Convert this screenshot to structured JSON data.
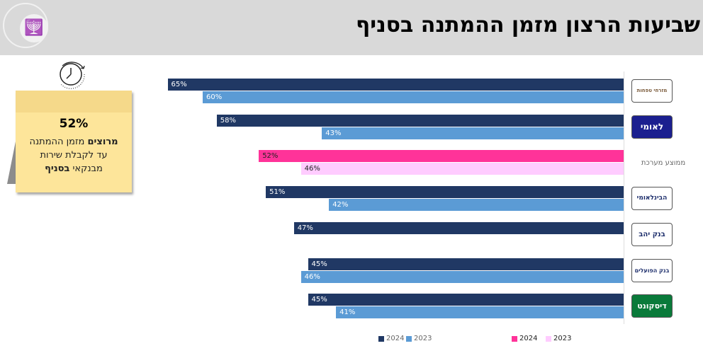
{
  "header": {
    "title": "שביעות הרצון מזמן ההמתנה בסניף"
  },
  "note": {
    "pct": "52%",
    "line1_bold": "מרוצים",
    "line1_rest": " מזמן ההמתנה",
    "line2": "עד לקבלת שירות",
    "line3_rest": "מבנקאי ",
    "line3_bold": "בסניף"
  },
  "chart_data": {
    "type": "bar",
    "orientation": "horizontal",
    "xlim": [
      0,
      100
    ],
    "categories": [
      "מזרחי טפחות",
      "לאומי",
      "ממוצע מערכת",
      "הבינלאומי",
      "בנק יהב",
      "בנק הפועלים",
      "דיסקונט"
    ],
    "series": [
      {
        "name": "2024",
        "values": [
          65,
          58,
          52,
          51,
          47,
          45,
          45
        ]
      },
      {
        "name": "2023",
        "values": [
          60,
          43,
          46,
          42,
          null,
          46,
          41
        ]
      }
    ],
    "colors": {
      "2024": "#203864",
      "2023": "#5b9bd5",
      "avg2024": "#ff3399",
      "avg2023": "#ffccff"
    },
    "highlight_index": 2,
    "legend": [
      {
        "label": "2024",
        "color": "#203864"
      },
      {
        "label": "2023",
        "color": "#5b9bd5"
      },
      {
        "label": "2024",
        "color": "#ff3399"
      },
      {
        "label": "2023",
        "color": "#ffccff"
      }
    ]
  }
}
